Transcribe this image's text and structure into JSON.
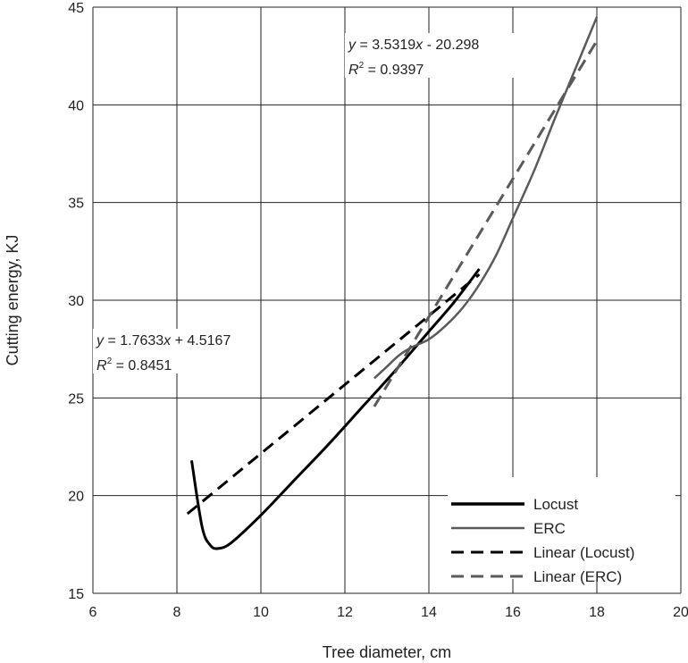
{
  "chart_data": {
    "type": "line",
    "xlabel": "Tree diameter, cm",
    "ylabel": "Cutting energy, KJ",
    "xlim": [
      6,
      20
    ],
    "ylim": [
      15,
      45
    ],
    "xticks": [
      6,
      8,
      10,
      12,
      14,
      16,
      18,
      20
    ],
    "yticks": [
      15,
      20,
      25,
      30,
      35,
      40,
      45
    ],
    "grid": true,
    "legend_position": "bottom-right",
    "series": [
      {
        "name": "Locust",
        "color": "#000000",
        "style": "solid",
        "x": [
          8.35,
          8.6,
          8.8,
          9.0,
          9.3,
          10.0,
          10.8,
          11.6,
          12.4,
          13.2,
          14.0,
          14.6,
          15.2
        ],
        "y": [
          21.8,
          18.4,
          17.45,
          17.3,
          17.6,
          19.0,
          20.8,
          22.6,
          24.5,
          26.4,
          28.4,
          29.9,
          31.6
        ]
      },
      {
        "name": "ERC",
        "color": "#5a5a5a",
        "style": "solid",
        "x": [
          12.7,
          13.0,
          13.3,
          13.6,
          14.0,
          14.4,
          14.8,
          15.2,
          15.6,
          16.0,
          16.5,
          17.0,
          17.5,
          18.0
        ],
        "y": [
          26.0,
          26.6,
          27.2,
          27.6,
          28.0,
          28.7,
          29.6,
          30.8,
          32.3,
          34.2,
          36.6,
          39.3,
          41.9,
          44.5
        ]
      },
      {
        "name": "Linear (Locust)",
        "color": "#000000",
        "style": "dashed",
        "x": [
          8.25,
          15.2
        ],
        "y": [
          19.07,
          31.32
        ]
      },
      {
        "name": "Linear (ERC)",
        "color": "#5a5a5a",
        "style": "dashed",
        "x": [
          12.7,
          18.0
        ],
        "y": [
          24.56,
          43.28
        ]
      }
    ],
    "annotations": [
      {
        "name": "erc-fit",
        "lines": [
          {
            "prefix": "y",
            "text": " = 3.5319",
            "var": "x",
            "suffix": " - 20.298"
          },
          {
            "prefix": "R",
            "sup": "2",
            "text": " = 0.9397"
          }
        ]
      },
      {
        "name": "locust-fit",
        "lines": [
          {
            "prefix": "y",
            "text": " = 1.7633",
            "var": "x",
            "suffix": " + 4.5167"
          },
          {
            "prefix": "R",
            "sup": "2",
            "text": " = 0.8451"
          }
        ]
      }
    ]
  }
}
